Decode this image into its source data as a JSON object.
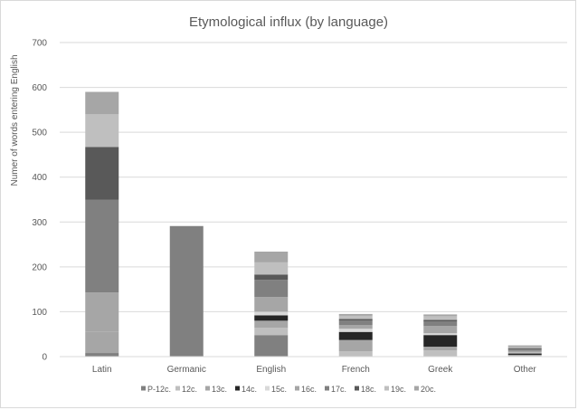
{
  "chart_data": {
    "type": "bar",
    "stacked": true,
    "title": "Etymological influx (by language)",
    "xlabel": "",
    "ylabel": "Numer of words entering English",
    "ylim": [
      0,
      700
    ],
    "yticks": [
      0,
      100,
      200,
      300,
      400,
      500,
      600,
      700
    ],
    "grid": true,
    "legend_position": "bottom",
    "categories": [
      "Latin",
      "Germanic",
      "English",
      "French",
      "Greek",
      "Other"
    ],
    "series": [
      {
        "name": "P-12c.",
        "color": "#808080",
        "values": [
          8,
          291,
          48,
          0,
          0,
          0
        ]
      },
      {
        "name": "12c.",
        "color": "#bfbfbf",
        "values": [
          0,
          0,
          16,
          12,
          14,
          2
        ]
      },
      {
        "name": "13c.",
        "color": "#a6a6a6",
        "values": [
          48,
          0,
          16,
          25,
          8,
          2
        ]
      },
      {
        "name": "14c.",
        "color": "#262626",
        "values": [
          0,
          0,
          12,
          18,
          26,
          3
        ]
      },
      {
        "name": "15c.",
        "color": "#d9d9d9",
        "values": [
          0,
          0,
          8,
          7,
          4,
          2
        ]
      },
      {
        "name": "16c.",
        "color": "#a6a6a6",
        "values": [
          87,
          0,
          33,
          8,
          16,
          4
        ]
      },
      {
        "name": "17c.",
        "color": "#808080",
        "values": [
          207,
          0,
          38,
          10,
          10,
          4
        ]
      },
      {
        "name": "18c.",
        "color": "#595959",
        "values": [
          117,
          0,
          12,
          4,
          4,
          2
        ]
      },
      {
        "name": "19c.",
        "color": "#bfbfbf",
        "values": [
          73,
          0,
          27,
          7,
          8,
          3
        ]
      },
      {
        "name": "20c.",
        "color": "#a6a6a6",
        "values": [
          50,
          0,
          24,
          4,
          4,
          3
        ]
      }
    ]
  }
}
